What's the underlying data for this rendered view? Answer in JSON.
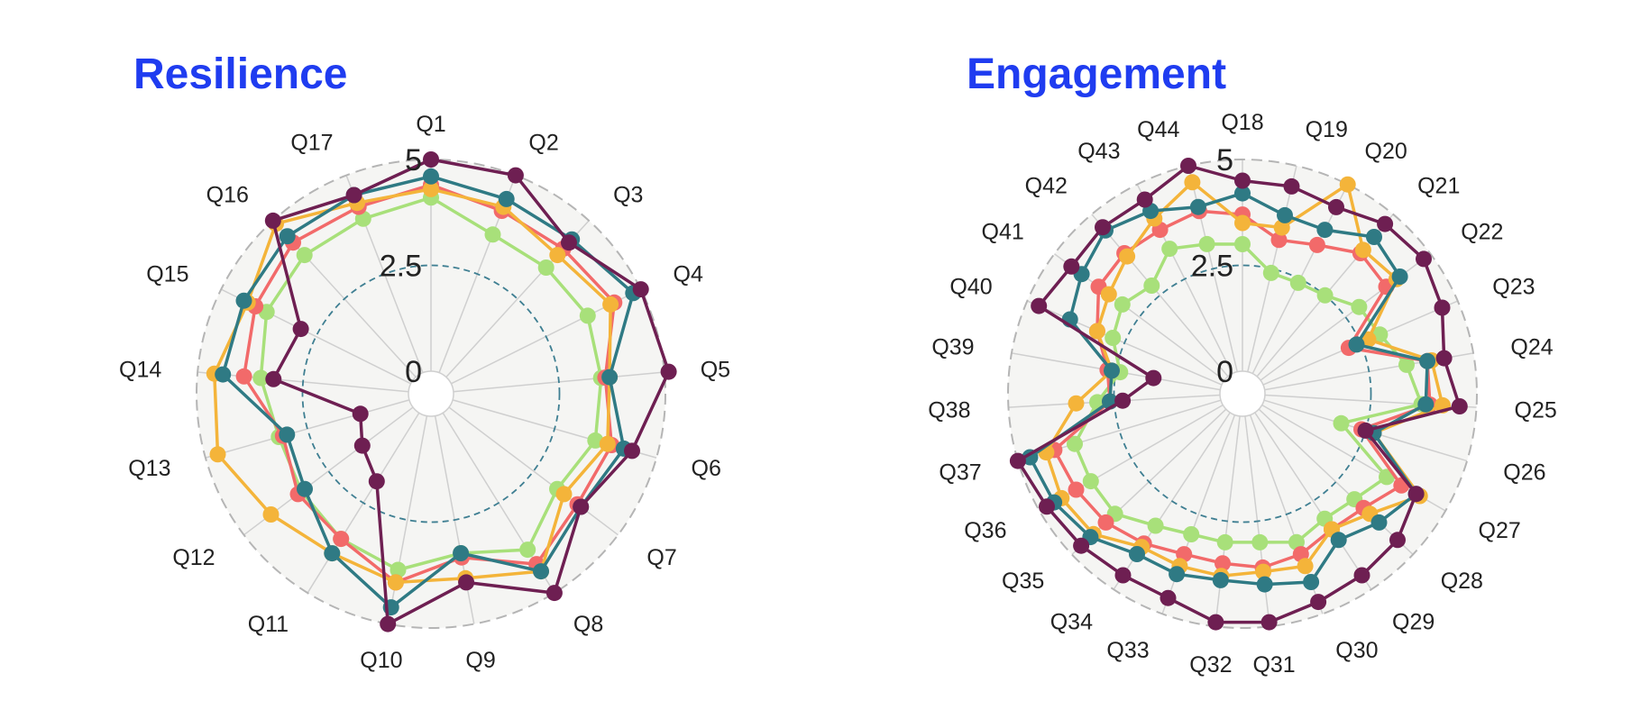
{
  "colors": {
    "title": "#1f3cf0",
    "plot_bg": "#f5f5f3",
    "spoke": "#cfcfcf",
    "outer_ring": "#b5b5b5",
    "mid_ring": "#3f7f92",
    "series": [
      "#a8e07a",
      "#f26a6a",
      "#f4b43a",
      "#2f7a84",
      "#6e1f52"
    ]
  },
  "chart_data": [
    {
      "type": "radar",
      "title": "Resilience",
      "categories": [
        "Q1",
        "Q2",
        "Q3",
        "Q4",
        "Q5",
        "Q6",
        "Q7",
        "Q8",
        "Q9",
        "Q10",
        "Q11",
        "Q12",
        "Q13",
        "Q14",
        "Q15",
        "Q16",
        "Q17"
      ],
      "rlim": [
        0,
        5
      ],
      "r_ticks": [
        "0",
        "2.5",
        "5"
      ],
      "series": [
        {
          "values": [
            4.1,
            3.5,
            3.5,
            3.6,
            3.5,
            3.5,
            3.2,
            3.8,
            3.3,
            3.7,
            3.5,
            3.3,
            3.2,
            3.5,
            3.8,
            3.9,
            3.9
          ]
        },
        {
          "values": [
            4.4,
            4.1,
            4.1,
            4.3,
            3.6,
            3.9,
            3.8,
            4.2,
            3.4,
            4.0,
            3.5,
            3.4,
            3.1,
            3.9,
            4.1,
            4.3,
            4.2
          ]
        },
        {
          "values": [
            4.3,
            4.2,
            3.9,
            4.2,
            3.7,
            3.8,
            3.4,
            4.4,
            3.9,
            4.0,
            3.9,
            4.2,
            4.7,
            4.6,
            4.3,
            4.9,
            4.3
          ]
        },
        {
          "values": [
            4.6,
            4.4,
            4.4,
            4.8,
            3.7,
            4.2,
            3.9,
            4.4,
            3.3,
            4.6,
            3.9,
            3.2,
            3.0,
            4.4,
            4.4,
            4.5,
            4.5
          ]
        },
        {
          "values": [
            5.0,
            5.0,
            4.3,
            5.0,
            5.1,
            4.4,
            3.9,
            5.0,
            4.0,
            5.0,
            1.9,
            1.5,
            1.2,
            3.2,
            2.9,
            5.0,
            4.5
          ]
        }
      ]
    },
    {
      "type": "radar",
      "title": "Engagement",
      "categories": [
        "Q18",
        "Q19",
        "Q20",
        "Q21",
        "Q22",
        "Q23",
        "Q24",
        "Q25",
        "Q26",
        "Q27",
        "Q28",
        "Q29",
        "Q30",
        "Q31",
        "Q32",
        "Q33",
        "Q34",
        "Q35",
        "Q36",
        "Q37",
        "Q38",
        "Q39",
        "Q40",
        "Q41",
        "Q42",
        "Q43",
        "Q44"
      ],
      "rlim": [
        0,
        5
      ],
      "r_ticks": [
        "0",
        "2.5",
        "5"
      ],
      "series": [
        {
          "values": [
            3.0,
            2.4,
            2.4,
            2.5,
            2.9,
            3.0,
            3.4,
            3.7,
            1.9,
            3.4,
            3.1,
            3.0,
            3.2,
            3.0,
            3.0,
            3.0,
            3.2,
            3.6,
            3.6,
            3.6,
            2.9,
            2.4,
            2.8,
            3.0,
            2.8,
            3.3,
            3.1
          ]
        },
        {
          "values": [
            3.7,
            3.2,
            3.4,
            3.8,
            3.7,
            2.2,
            3.9,
            3.9,
            2.4,
            3.8,
            3.4,
            3.3,
            3.5,
            3.6,
            3.5,
            3.5,
            3.7,
            3.9,
            4.0,
            4.1,
            2.6,
            2.7,
            3.2,
            3.7,
            3.8,
            3.8,
            3.9
          ]
        },
        {
          "values": [
            3.5,
            3.5,
            5.0,
            3.9,
            4.0,
            2.7,
            4.0,
            4.2,
            2.7,
            4.3,
            3.6,
            3.3,
            3.8,
            3.7,
            3.8,
            3.8,
            3.8,
            4.3,
            4.4,
            4.3,
            3.4,
            2.6,
            3.2,
            3.4,
            3.7,
            4.1,
            4.6
          ]
        },
        {
          "values": [
            4.2,
            3.8,
            3.8,
            4.3,
            4.1,
            2.4,
            3.9,
            3.8,
            2.7,
            4.2,
            3.9,
            3.6,
            4.2,
            4.0,
            3.9,
            4.0,
            4.0,
            4.4,
            4.6,
            4.7,
            2.6,
            2.6,
            3.9,
            4.2,
            4.5,
            4.3,
            4.0
          ]
        },
        {
          "values": [
            4.5,
            4.5,
            4.4,
            4.7,
            4.8,
            4.6,
            4.3,
            4.6,
            2.5,
            4.2,
            4.5,
            4.6,
            4.7,
            4.9,
            4.9,
            4.6,
            4.6,
            4.7,
            4.8,
            5.0,
            2.3,
            1.6,
            4.7,
            4.5,
            4.6,
            4.6,
            5.0
          ]
        }
      ]
    }
  ]
}
